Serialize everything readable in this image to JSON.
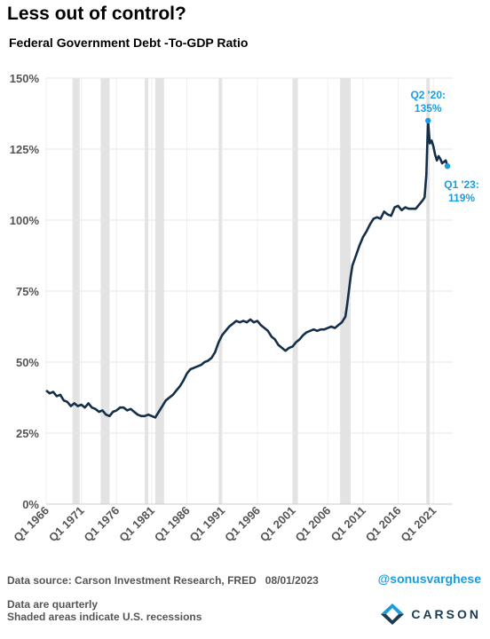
{
  "header": {
    "headline": "Less out of control?",
    "subtitle": "Federal Government Debt -To-GDP Ratio"
  },
  "footer": {
    "source": "Data source: Carson Investment Research, FRED",
    "date": "08/01/2023",
    "handle": "@sonusvarghese",
    "note1": "Data are quarterly",
    "note2": "Shaded areas indicate U.S. recessions",
    "brand": "CARSON"
  },
  "chart_data": {
    "type": "line",
    "title": "Federal Government Debt -To-GDP Ratio",
    "xlabel": "",
    "ylabel": "",
    "ylim": [
      0,
      150
    ],
    "yticks": [
      0,
      25,
      50,
      75,
      100,
      125,
      150
    ],
    "ytick_labels": [
      "0%",
      "25%",
      "50%",
      "75%",
      "100%",
      "125%",
      "150%"
    ],
    "xlim": [
      1966.0,
      2023.75
    ],
    "xticks": [
      1966,
      1971,
      1976,
      1981,
      1986,
      1991,
      1996,
      2001,
      2006,
      2011,
      2016,
      2021
    ],
    "xtick_labels": [
      "Q1 1966",
      "Q1 1971",
      "Q1 1976",
      "Q1 1981",
      "Q1 1986",
      "Q1 1991",
      "Q1 1996",
      "Q1 2001",
      "Q1 2006",
      "Q1 2011",
      "Q1 2016",
      "Q1 2021"
    ],
    "grid": true,
    "line_color": "#152f4a",
    "highlight_color": "#1a9de0",
    "recession_color": "#e3e3e3",
    "recessions": [
      [
        1969.75,
        1970.75
      ],
      [
        1973.75,
        1975.0
      ],
      [
        1980.0,
        1980.5
      ],
      [
        1981.5,
        1982.75
      ],
      [
        1990.5,
        1991.0
      ],
      [
        2001.0,
        2001.75
      ],
      [
        2007.75,
        2009.25
      ],
      [
        2020.0,
        2020.25
      ]
    ],
    "x": [
      1966.0,
      1966.5,
      1967.0,
      1967.5,
      1968.0,
      1968.5,
      1969.0,
      1969.5,
      1970.0,
      1970.5,
      1971.0,
      1971.5,
      1972.0,
      1972.5,
      1973.0,
      1973.5,
      1974.0,
      1974.5,
      1975.0,
      1975.5,
      1976.0,
      1976.5,
      1977.0,
      1977.5,
      1978.0,
      1978.5,
      1979.0,
      1979.5,
      1980.0,
      1980.5,
      1981.0,
      1981.5,
      1982.0,
      1982.5,
      1983.0,
      1983.5,
      1984.0,
      1984.5,
      1985.0,
      1985.5,
      1986.0,
      1986.5,
      1987.0,
      1987.5,
      1988.0,
      1988.5,
      1989.0,
      1989.5,
      1990.0,
      1990.5,
      1991.0,
      1991.5,
      1992.0,
      1992.5,
      1993.0,
      1993.5,
      1994.0,
      1994.5,
      1995.0,
      1995.5,
      1996.0,
      1996.5,
      1997.0,
      1997.5,
      1998.0,
      1998.5,
      1999.0,
      1999.5,
      2000.0,
      2000.5,
      2001.0,
      2001.5,
      2002.0,
      2002.5,
      2003.0,
      2003.5,
      2004.0,
      2004.5,
      2005.0,
      2005.5,
      2006.0,
      2006.5,
      2007.0,
      2007.5,
      2008.0,
      2008.5,
      2008.75,
      2009.0,
      2009.25,
      2009.5,
      2010.0,
      2010.5,
      2011.0,
      2011.5,
      2012.0,
      2012.5,
      2013.0,
      2013.5,
      2014.0,
      2014.5,
      2015.0,
      2015.5,
      2016.0,
      2016.5,
      2017.0,
      2017.5,
      2018.0,
      2018.5,
      2019.0,
      2019.5,
      2019.75,
      2020.0,
      2020.25,
      2020.5,
      2020.75,
      2021.0,
      2021.25,
      2021.5,
      2021.75,
      2022.0,
      2022.25,
      2022.5,
      2022.75,
      2023.0
    ],
    "y": [
      40,
      39,
      39.5,
      38,
      38.5,
      36.5,
      36,
      34.5,
      35.5,
      34.5,
      35,
      34,
      35.5,
      34,
      33.5,
      32.5,
      33,
      31.5,
      31,
      32.5,
      33,
      34,
      34,
      33,
      33.5,
      32.5,
      31.5,
      31,
      31,
      31.5,
      31,
      30.5,
      32.5,
      34.5,
      36.5,
      37.5,
      38.5,
      40,
      41.5,
      43.5,
      46,
      47.5,
      48,
      48.5,
      49,
      50,
      50.5,
      51.5,
      53.5,
      57,
      59.5,
      61,
      62.5,
      63.5,
      64.5,
      64,
      64.5,
      64,
      65,
      64,
      64.5,
      63,
      62,
      61,
      59,
      58,
      56,
      55,
      54,
      55,
      55.5,
      57,
      58,
      59.5,
      60.5,
      61,
      61.5,
      61,
      61.5,
      61.5,
      62,
      62.5,
      62,
      63,
      64,
      66,
      70,
      75,
      80,
      84,
      87.5,
      91,
      94,
      96,
      98.5,
      100.5,
      101,
      100.5,
      103,
      102,
      101.5,
      104.5,
      105,
      103.5,
      104.5,
      104,
      104,
      104,
      105.5,
      107,
      108,
      116,
      135,
      127,
      128,
      126,
      123,
      121,
      122.5,
      121.5,
      120,
      120.5,
      121,
      119
    ],
    "annotations": [
      {
        "x": 2020.25,
        "y": 135,
        "label_line1": "Q2 '20:",
        "label_line2": "135%"
      },
      {
        "x": 2023.0,
        "y": 119,
        "label_line1": "Q1 '23:",
        "label_line2": "119%"
      }
    ]
  }
}
